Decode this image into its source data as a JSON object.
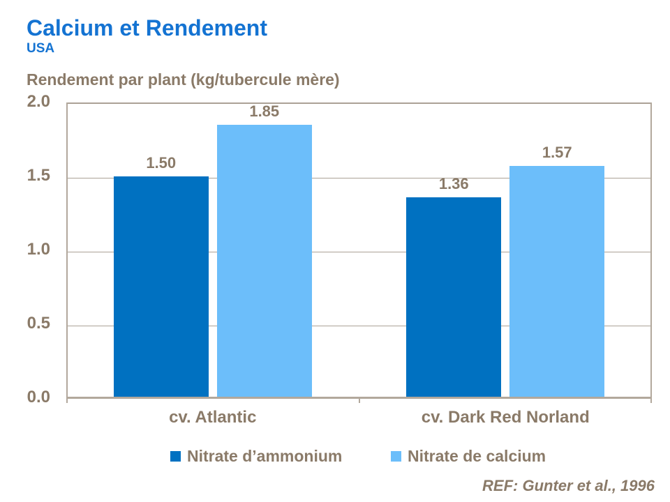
{
  "header": {
    "title": "Calcium et Rendement",
    "subtitle": "USA"
  },
  "chart_header": "Rendement par plant (kg/tubercule mère)",
  "footer": {
    "ref": "REF: Gunter et al., 1996"
  },
  "colors": {
    "title_blue": "#1473D2",
    "text_taupe": "#8A7A68",
    "gridline": "#ABA196",
    "axis": "#B2A89C",
    "series_dark_blue": "#0071C1",
    "series_light_blue": "#6CBEFA"
  },
  "chart_data": {
    "type": "bar",
    "title": "Rendement par plant (kg/tubercule mère)",
    "categories": [
      "cv. Atlantic",
      "cv. Dark Red Norland"
    ],
    "series": [
      {
        "name": "Nitrate d’ammonium",
        "color": "#0071C1",
        "values": [
          1.5,
          1.36
        ]
      },
      {
        "name": "Nitrate de calcium",
        "color": "#6CBEFA",
        "values": [
          1.85,
          1.57
        ]
      }
    ],
    "value_labels": [
      [
        "1.50",
        "1.36"
      ],
      [
        "1.85",
        "1.57"
      ]
    ],
    "xlabel": "",
    "ylabel": "Rendement par plant (kg/tubercule mère)",
    "ylim": [
      0.0,
      2.0
    ],
    "yticks": [
      "0.0",
      "0.5",
      "1.0",
      "1.5",
      "2.0"
    ],
    "grid": true,
    "legend_position": "bottom",
    "annotation": "REF: Gunter et al., 1996"
  }
}
